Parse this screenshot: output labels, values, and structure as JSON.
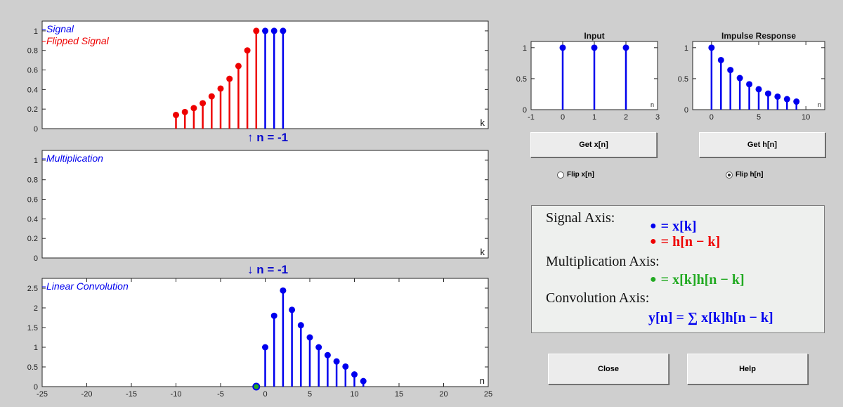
{
  "colors": {
    "blue": "#0000ee",
    "red": "#ee0000",
    "green": "#22aa22",
    "stem_blue": "#0018cc"
  },
  "signal_plot": {
    "legend_signal": "Signal",
    "legend_flipped": "Flipped Signal",
    "axis_label": "k",
    "yticks": [
      0,
      0.2,
      0.4,
      0.6,
      0.8,
      1
    ],
    "ytick_labels": [
      "0",
      "0.2",
      "0.4",
      "0.6",
      "0.8",
      "1"
    ],
    "xlim": [
      -25,
      25
    ],
    "ylim": [
      0,
      1.1
    ]
  },
  "mult_plot": {
    "legend": "Multiplication",
    "axis_label": "k",
    "yticks": [
      0,
      0.2,
      0.4,
      0.6,
      0.8,
      1
    ],
    "ytick_labels": [
      "0",
      "0.2",
      "0.4",
      "0.6",
      "0.8",
      "1"
    ],
    "xlim": [
      -25,
      25
    ],
    "ylim": [
      0,
      1.1
    ]
  },
  "conv_plot": {
    "legend": "Linear Convolution",
    "axis_label": "n",
    "yticks": [
      0,
      0.5,
      1,
      1.5,
      2,
      2.5
    ],
    "ytick_labels": [
      "0",
      "0.5",
      "1",
      "1.5",
      "2",
      "2.5"
    ],
    "xticks": [
      -25,
      -20,
      -15,
      -10,
      -5,
      0,
      5,
      10,
      15,
      20,
      25
    ],
    "xtick_labels": [
      "-25",
      "-20",
      "-15",
      "-10",
      "-5",
      "0",
      "5",
      "10",
      "15",
      "20",
      "25"
    ],
    "xlim": [
      -25,
      25
    ],
    "ylim": [
      0,
      2.75
    ]
  },
  "indicators": {
    "up": "↑ n = -1",
    "down": "↓ n = -1"
  },
  "input_plot": {
    "title": "Input",
    "axis_label": "n",
    "xticks": [
      -1,
      0,
      1,
      2,
      3
    ],
    "xtick_labels": [
      "-1",
      "0",
      "1",
      "2",
      "3"
    ],
    "yticks": [
      0,
      0.5,
      1
    ],
    "ytick_labels": [
      "0",
      "0.5",
      "1"
    ],
    "xlim": [
      -1,
      3
    ],
    "ylim": [
      0,
      1.1
    ]
  },
  "impulse_plot": {
    "title": "Impulse Response",
    "axis_label": "n",
    "xticks": [
      0,
      5,
      10
    ],
    "xtick_labels": [
      "0",
      "5",
      "10"
    ],
    "yticks": [
      0,
      0.5,
      1
    ],
    "ytick_labels": [
      "0",
      "0.5",
      "1"
    ],
    "xlim": [
      -2,
      12
    ],
    "ylim": [
      0,
      1.1
    ]
  },
  "buttons": {
    "get_x": "Get x[n]",
    "get_h": "Get h[n]",
    "close": "Close",
    "help": "Help"
  },
  "radios": {
    "flip_x": "Flip x[n]",
    "flip_h": "Flip h[n]",
    "flip_x_selected": false,
    "flip_h_selected": true
  },
  "legend_box": {
    "signal_axis_title": "Signal Axis:",
    "signal_x": "= x[k]",
    "signal_h": "= h[n − k]",
    "mult_axis_title": "Multiplication Axis:",
    "mult_formula": "= x[k]h[n − k]",
    "conv_axis_title": "Convolution Axis:",
    "conv_formula": "y[n] = ∑ x[k]h[n − k]"
  },
  "chart_data": [
    {
      "type": "stem",
      "name": "signal-axis",
      "series": [
        {
          "name": "Signal",
          "x": [
            0,
            1,
            2
          ],
          "values": [
            1,
            1,
            1
          ],
          "color": "#0000ee"
        },
        {
          "name": "Flipped Signal",
          "x": [
            -10,
            -9,
            -8,
            -7,
            -6,
            -5,
            -4,
            -3,
            -2,
            -1
          ],
          "values": [
            0.14,
            0.17,
            0.21,
            0.26,
            0.33,
            0.41,
            0.51,
            0.64,
            0.8,
            1
          ],
          "color": "#ee0000"
        }
      ],
      "xlim": [
        -25,
        25
      ],
      "ylim": [
        0,
        1.1
      ],
      "xlabel": "k"
    },
    {
      "type": "stem",
      "name": "multiplication-axis",
      "series": [
        {
          "name": "Multiplication",
          "x": [],
          "values": [],
          "color": "#22aa22"
        }
      ],
      "xlim": [
        -25,
        25
      ],
      "ylim": [
        0,
        1.1
      ],
      "xlabel": "k"
    },
    {
      "type": "stem",
      "name": "convolution-axis",
      "series": [
        {
          "name": "Linear Convolution",
          "x": [
            0,
            1,
            2,
            3,
            4,
            5,
            6,
            7,
            8,
            9,
            10,
            11
          ],
          "values": [
            1,
            1.8,
            2.44,
            1.95,
            1.56,
            1.25,
            1,
            0.8,
            0.64,
            0.51,
            0.31,
            0.14
          ],
          "color": "#0000ee"
        },
        {
          "name": "current",
          "x": [
            -1
          ],
          "values": [
            0
          ],
          "color": "#22aa22"
        }
      ],
      "xlim": [
        -25,
        25
      ],
      "ylim": [
        0,
        2.75
      ],
      "xlabel": "n"
    },
    {
      "type": "stem",
      "name": "input",
      "series": [
        {
          "name": "x[n]",
          "x": [
            0,
            1,
            2
          ],
          "values": [
            1,
            1,
            1
          ],
          "color": "#0000ee"
        }
      ],
      "xlim": [
        -1,
        3
      ],
      "ylim": [
        0,
        1.1
      ],
      "xlabel": "n",
      "title": "Input"
    },
    {
      "type": "stem",
      "name": "impulse-response",
      "series": [
        {
          "name": "h[n]",
          "x": [
            0,
            1,
            2,
            3,
            4,
            5,
            6,
            7,
            8,
            9
          ],
          "values": [
            1,
            0.8,
            0.64,
            0.51,
            0.41,
            0.33,
            0.26,
            0.21,
            0.17,
            0.13
          ],
          "color": "#0000ee"
        }
      ],
      "xlim": [
        -2,
        12
      ],
      "ylim": [
        0,
        1.1
      ],
      "xlabel": "n",
      "title": "Impulse Response"
    }
  ]
}
